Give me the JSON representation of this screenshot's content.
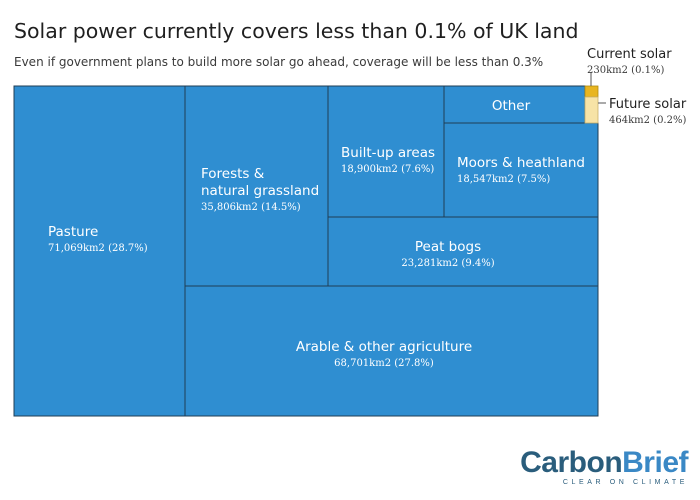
{
  "chart_data": {
    "type": "treemap",
    "title": "Solar power currently covers less than 0.1% of UK land",
    "subtitle": "Even if government plans to build more solar go ahead, coverage will be less than 0.3%",
    "unit": "km2",
    "series": [
      {
        "name": "Pasture",
        "label": "Pasture",
        "value": 71069,
        "value_text": "71,069km2 (28.7%)"
      },
      {
        "name": "Arable & other agriculture",
        "label": "Arable & other agriculture",
        "value": 68701,
        "value_text": "68,701km2 (27.8%)"
      },
      {
        "name": "Forests & natural grassland",
        "label": "Forests &\nnatural grassland",
        "value": 35806,
        "value_text": "35,806km2 (14.5%)"
      },
      {
        "name": "Peat bogs",
        "label": "Peat bogs",
        "value": 23281,
        "value_text": "23,281km2 (9.4%)"
      },
      {
        "name": "Built-up areas",
        "label": "Built-up areas",
        "value": 18900,
        "value_text": "18,900km2 (7.6%)"
      },
      {
        "name": "Moors & heathland",
        "label": "Moors & heathland",
        "value": 18547,
        "value_text": "18,547km2 (7.5%)"
      },
      {
        "name": "Other",
        "label": "Other",
        "value": null,
        "value_text": ""
      },
      {
        "name": "Current solar",
        "label": "Current solar",
        "value": 230,
        "value_text": "230km2 (0.1%)"
      },
      {
        "name": "Future solar",
        "label": "Future solar",
        "value": 464,
        "value_text": "464km2 (0.2%)"
      }
    ],
    "colors": {
      "land": "#2f8ed1",
      "border": "#1f3d55",
      "current_solar": "#e8b520",
      "future_solar": "#f7e3a6"
    }
  },
  "brand": {
    "name_part1": "Carbon",
    "name_part2": "Brief",
    "tagline": "CLEAR ON CLIMATE"
  }
}
